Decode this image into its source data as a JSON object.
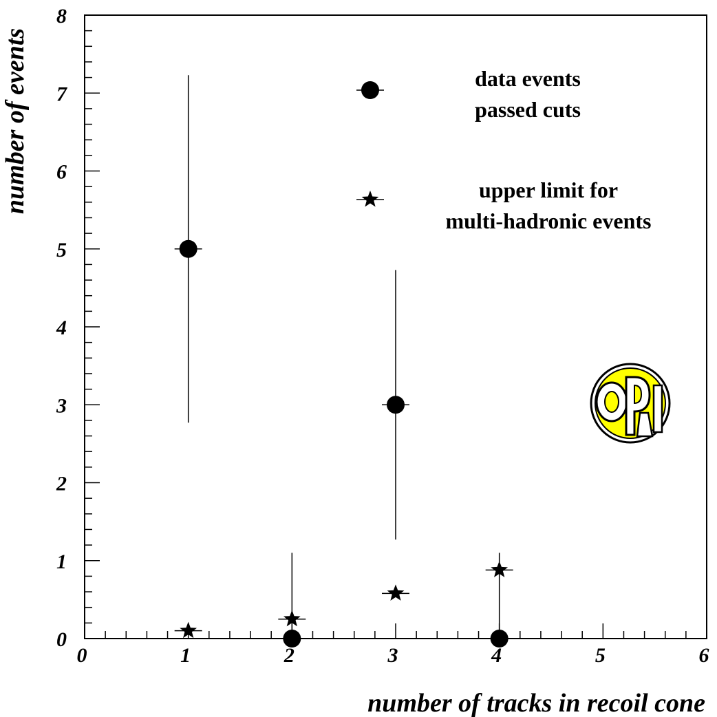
{
  "chart_data": {
    "type": "scatter",
    "title": "",
    "xlabel": "number of tracks in recoil cone",
    "ylabel": "number of events",
    "xlim": [
      0,
      6
    ],
    "ylim": [
      0,
      8
    ],
    "x_major_ticks": [
      0,
      1,
      2,
      3,
      4,
      5,
      6
    ],
    "y_major_ticks": [
      0,
      1,
      2,
      3,
      4,
      5,
      6,
      7,
      8
    ],
    "x_tick_labels": [
      "0",
      "1",
      "2",
      "3",
      "4",
      "5",
      "6"
    ],
    "y_tick_labels": [
      "0",
      "1",
      "2",
      "3",
      "4",
      "5",
      "6",
      "7",
      "8"
    ],
    "grid": false,
    "legend_position": "top-right",
    "series": [
      {
        "name": "data events passed cuts",
        "marker": "circle",
        "legend_lines": [
          "data events",
          "passed cuts"
        ],
        "points": [
          {
            "x": 1,
            "y": 5,
            "err_low": 2.23,
            "err_high": 2.23
          },
          {
            "x": 2,
            "y": 0,
            "err_low": 0,
            "err_high": 1.1
          },
          {
            "x": 3,
            "y": 3,
            "err_low": 1.73,
            "err_high": 1.73
          },
          {
            "x": 4,
            "y": 0,
            "err_low": 0,
            "err_high": 1.1
          }
        ]
      },
      {
        "name": "upper limit for multi-hadronic events",
        "marker": "star",
        "legend_lines": [
          "upper limit for",
          "multi-hadronic events"
        ],
        "points": [
          {
            "x": 1,
            "y": 0.1
          },
          {
            "x": 2,
            "y": 0.25
          },
          {
            "x": 3,
            "y": 0.58
          },
          {
            "x": 4,
            "y": 0.88
          }
        ]
      }
    ],
    "logo": {
      "name": "OPAL",
      "fill_color": "#ffff00",
      "outline_color": "#000000"
    }
  }
}
